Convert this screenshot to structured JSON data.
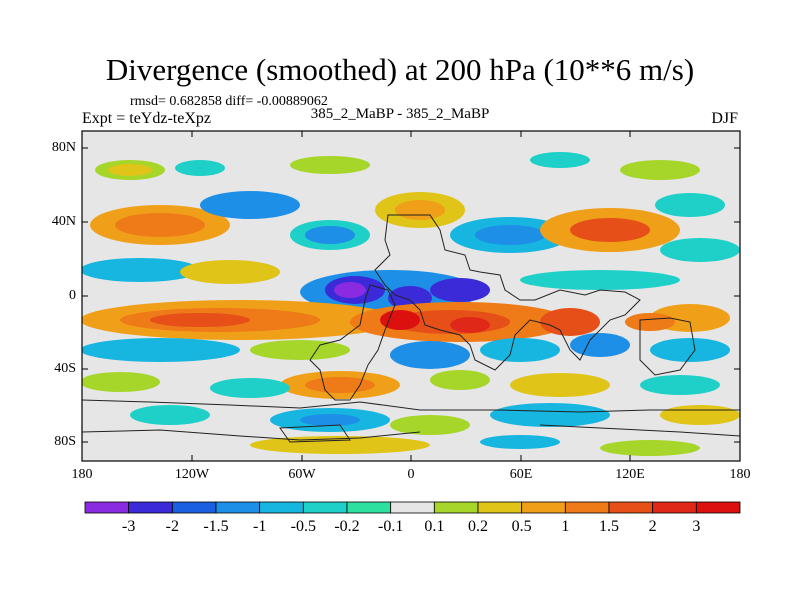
{
  "title": "Divergence (smoothed) at 200 hPa (10**6 m/s)",
  "stats": {
    "rmsd_label": "rmsd= 0.682858 diff= -0.00889062"
  },
  "experiment": "Expt = teYdz-teXpz",
  "case_label": "385_2_MaBP - 385_2_MaBP",
  "season": "DJF",
  "axes": {
    "lat_labels": [
      "80N",
      "40N",
      "0",
      "40S",
      "80S"
    ],
    "lon_labels": [
      "180",
      "120W",
      "60W",
      "0",
      "60E",
      "120E",
      "180"
    ]
  },
  "colorbar": {
    "labels": [
      "-3",
      "-2",
      "-1.5",
      "-1",
      "-0.5",
      "-0.2",
      "-0.1",
      "0.1",
      "0.2",
      "0.5",
      "1",
      "1.5",
      "2",
      "3"
    ],
    "colors": [
      "#8a2be2",
      "#3b2ad8",
      "#1a5fe0",
      "#1e8fe6",
      "#16b6e0",
      "#1ed0c8",
      "#2ee0a0",
      "#e6e6e6",
      "#a6d62a",
      "#e0c418",
      "#f0a018",
      "#ee7a18",
      "#e65018",
      "#e02818",
      "#dd1010"
    ]
  }
}
